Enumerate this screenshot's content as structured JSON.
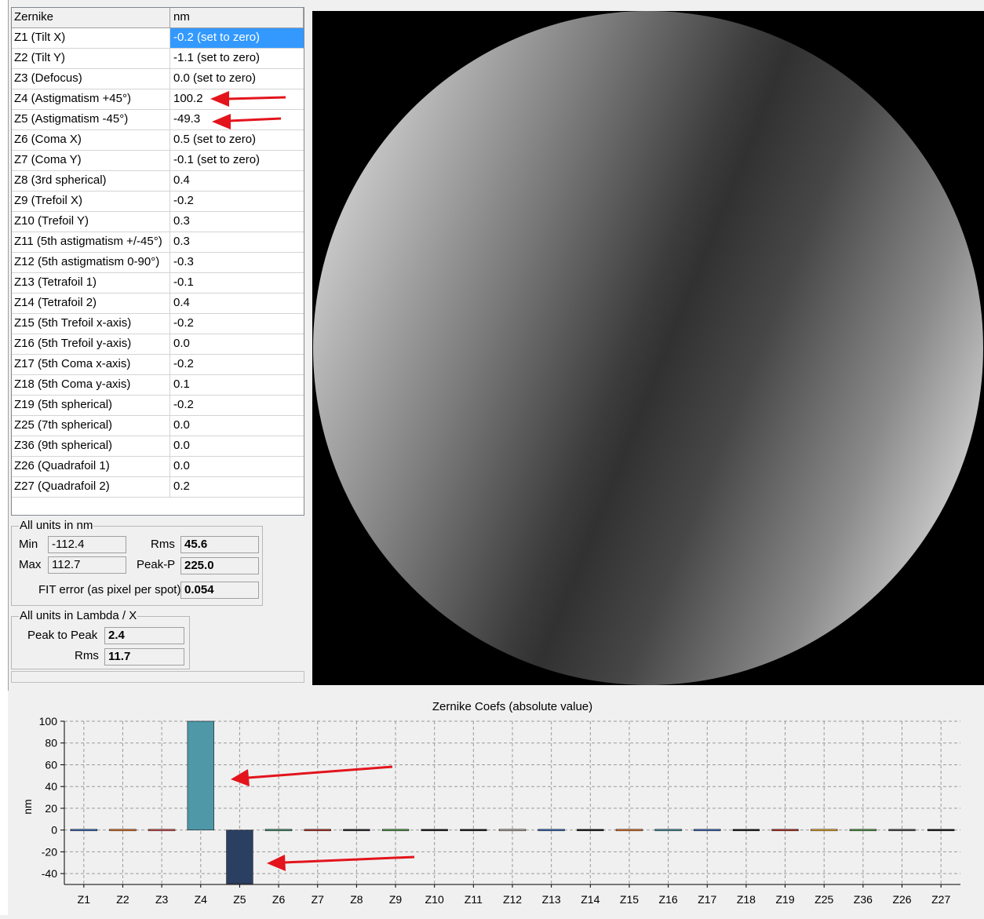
{
  "table": {
    "header": {
      "name": "Zernike",
      "unit": "nm"
    },
    "rows": [
      {
        "name": "Z1 (Tilt X)",
        "value": "-0.2  (set to zero)"
      },
      {
        "name": "Z2 (Tilt Y)",
        "value": "-1.1  (set to zero)"
      },
      {
        "name": "Z3 (Defocus)",
        "value": "0.0  (set to zero)"
      },
      {
        "name": "Z4 (Astigmatism +45°)",
        "value": "100.2"
      },
      {
        "name": "Z5 (Astigmatism -45°)",
        "value": "-49.3"
      },
      {
        "name": "Z6 (Coma X)",
        "value": "0.5  (set to zero)"
      },
      {
        "name": "Z7 (Coma Y)",
        "value": "-0.1  (set to zero)"
      },
      {
        "name": "Z8 (3rd spherical)",
        "value": "0.4"
      },
      {
        "name": "Z9 (Trefoil X)",
        "value": "-0.2"
      },
      {
        "name": "Z10 (Trefoil Y)",
        "value": "0.3"
      },
      {
        "name": "Z11 (5th astigmatism +/-45°)",
        "value": "0.3"
      },
      {
        "name": "Z12 (5th astigmatism  0-90°)",
        "value": "-0.3"
      },
      {
        "name": "Z13 (Tetrafoil 1)",
        "value": "-0.1"
      },
      {
        "name": "Z14 (Tetrafoil 2)",
        "value": "0.4"
      },
      {
        "name": "Z15 (5th Trefoil x-axis)",
        "value": "-0.2"
      },
      {
        "name": "Z16 (5th Trefoil y-axis)",
        "value": "0.0"
      },
      {
        "name": "Z17 (5th Coma x-axis)",
        "value": "-0.2"
      },
      {
        "name": "Z18 (5th Coma y-axis)",
        "value": "0.1"
      },
      {
        "name": "Z19 (5th spherical)",
        "value": "-0.2"
      },
      {
        "name": "Z25 (7th spherical)",
        "value": "0.0"
      },
      {
        "name": "Z36 (9th spherical)",
        "value": "0.0"
      },
      {
        "name": "Z26 (Quadrafoil 1)",
        "value": "0.0"
      },
      {
        "name": "Z27 (Quadrafoil 2)",
        "value": "0.2"
      }
    ]
  },
  "nm_group": {
    "title": "All units in nm",
    "min_label": "Min",
    "min_value": "-112.4",
    "max_label": "Max",
    "max_value": "112.7",
    "rms_label": "Rms",
    "rms_value": "45.6",
    "pp_label": "Peak-P",
    "pp_value": "225.0",
    "fit_label": "FIT error (as pixel per spot)",
    "fit_value": "0.054"
  },
  "lambda_group": {
    "title": "All units in Lambda / X",
    "pp_label": "Peak to Peak",
    "pp_value": "2.4",
    "rms_label": "Rms",
    "rms_value": "11.7"
  },
  "chart_data": {
    "type": "bar",
    "title": "Zernike Coefs (absolute value)",
    "ylabel": "nm",
    "xlabel": "",
    "ylim": [
      -50,
      100
    ],
    "yticks": [
      100,
      80,
      60,
      40,
      20,
      0,
      -20,
      -40
    ],
    "grid": true,
    "categories": [
      "Z1",
      "Z2",
      "Z3",
      "Z4",
      "Z5",
      "Z6",
      "Z7",
      "Z8",
      "Z9",
      "Z10",
      "Z11",
      "Z12",
      "Z13",
      "Z14",
      "Z15",
      "Z16",
      "Z17",
      "Z18",
      "Z19",
      "Z25",
      "Z36",
      "Z26",
      "Z27"
    ],
    "values": [
      -0.2,
      -1.1,
      0.0,
      100.2,
      -49.3,
      0.5,
      -0.1,
      0.4,
      -0.2,
      0.3,
      0.3,
      -0.3,
      -0.1,
      0.4,
      -0.2,
      0.0,
      -0.2,
      0.1,
      -0.2,
      0.0,
      0.0,
      0.0,
      0.2
    ],
    "colors": [
      "#4472c4",
      "#ed7d31",
      "#e15759",
      "#4e98a8",
      "#2b3f63",
      "#4e9a78",
      "#c0392b",
      "#333333",
      "#59a14f",
      "#222222",
      "#222222",
      "#bab0ab",
      "#4472c4",
      "#222222",
      "#ed7d31",
      "#4e98a8",
      "#4472c4",
      "#222222",
      "#c0392b",
      "#f2b134",
      "#59a14f",
      "#555555",
      "#222222"
    ]
  },
  "annotations": {
    "arrow_color": "#e3141c"
  }
}
